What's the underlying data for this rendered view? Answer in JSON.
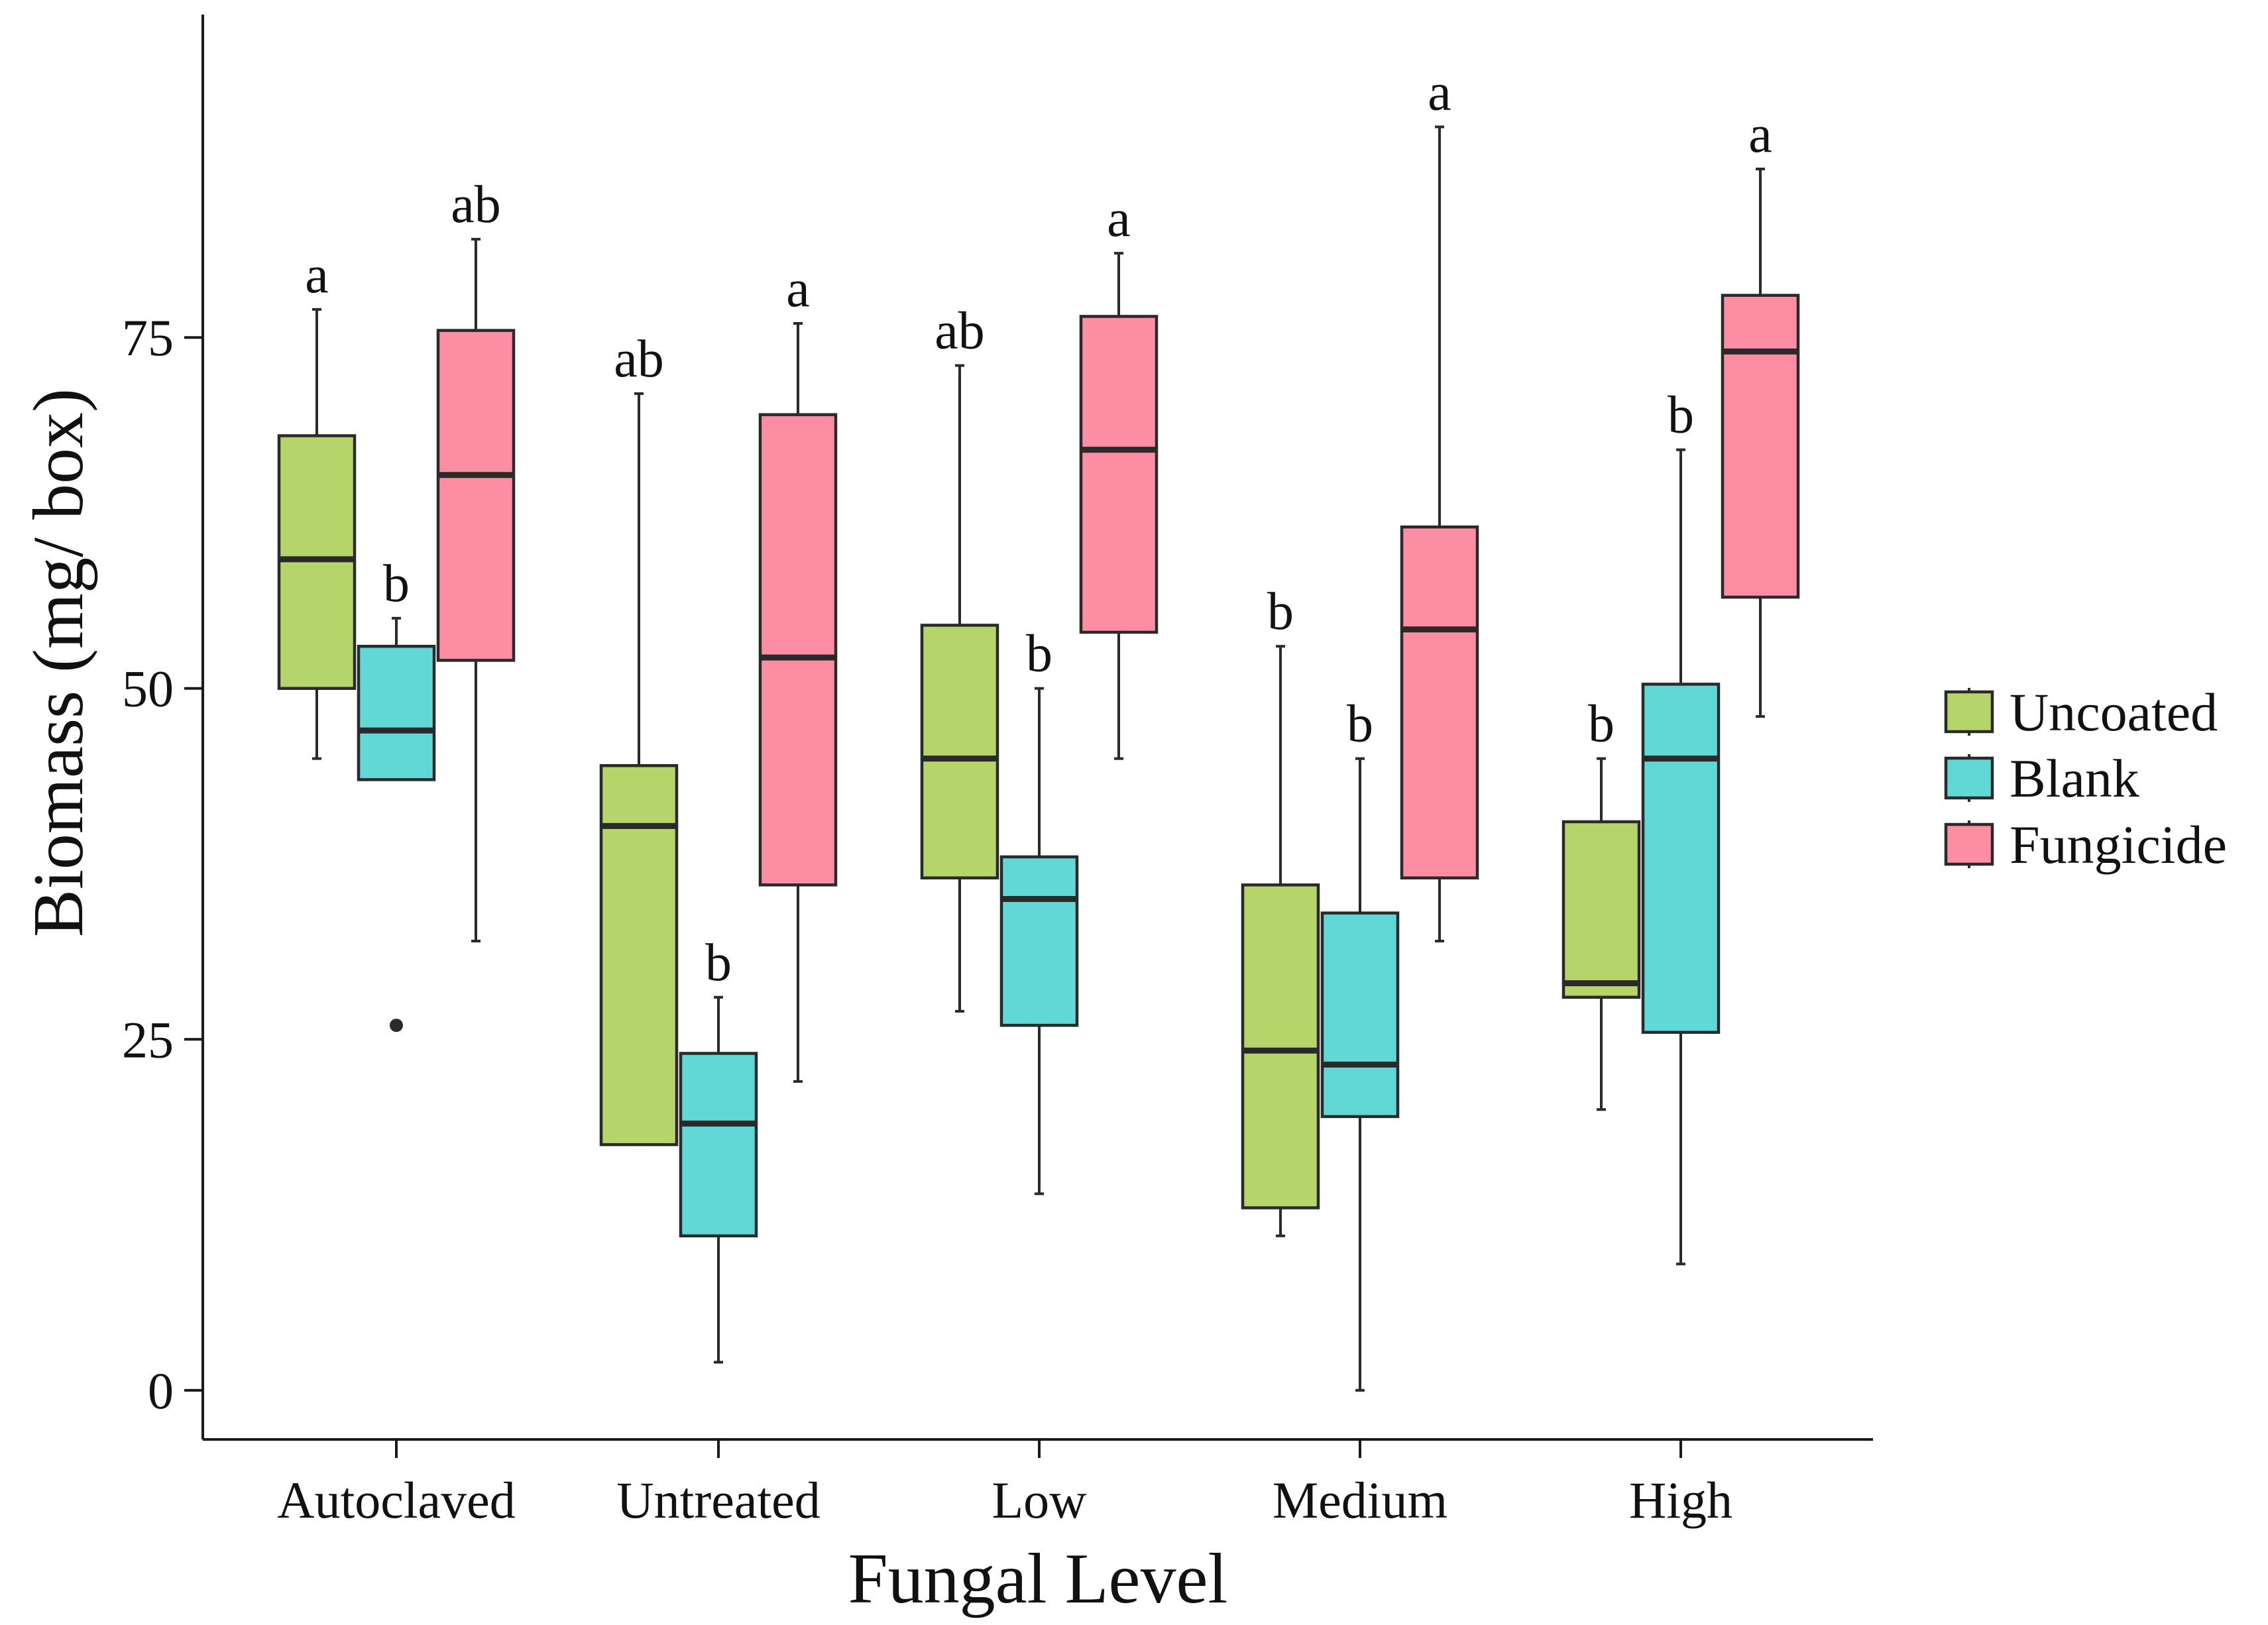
{
  "chart_data": {
    "type": "boxplot",
    "xlabel": "Fungal Level",
    "ylabel": "Biomass (mg/ box)",
    "ylim": [
      -3.5,
      98
    ],
    "yticks": [
      0,
      25,
      50,
      75
    ],
    "categories": [
      "Autoclaved",
      "Untreated",
      "Low",
      "Medium",
      "High"
    ],
    "legend_position": "right",
    "series": [
      {
        "name": "Uncoated",
        "color": "#b5d56a",
        "boxes": [
          {
            "min": 45,
            "q1": 50,
            "median": 59.2,
            "q3": 68,
            "max": 77,
            "sig": "a",
            "outliers": []
          },
          {
            "min": 17.5,
            "q1": 17.5,
            "median": 40.2,
            "q3": 44.5,
            "max": 71,
            "sig": "ab",
            "outliers": []
          },
          {
            "min": 27,
            "q1": 36.5,
            "median": 45,
            "q3": 54.5,
            "max": 73,
            "sig": "ab",
            "outliers": []
          },
          {
            "min": 11,
            "q1": 13,
            "median": 24.2,
            "q3": 36,
            "max": 53,
            "sig": "b",
            "outliers": []
          },
          {
            "min": 20,
            "q1": 28,
            "median": 29,
            "q3": 40.5,
            "max": 45,
            "sig": "b",
            "outliers": []
          }
        ]
      },
      {
        "name": "Blank",
        "color": "#5fd8d6",
        "boxes": [
          {
            "min": 43.5,
            "q1": 43.5,
            "median": 47,
            "q3": 53,
            "max": 55,
            "sig": "b",
            "outliers": [
              26
            ]
          },
          {
            "min": 2,
            "q1": 11,
            "median": 19,
            "q3": 24,
            "max": 28,
            "sig": "b",
            "outliers": []
          },
          {
            "min": 14,
            "q1": 26,
            "median": 35,
            "q3": 38,
            "max": 50,
            "sig": "b",
            "outliers": []
          },
          {
            "min": 0,
            "q1": 19.5,
            "median": 23.2,
            "q3": 34,
            "max": 45,
            "sig": "b",
            "outliers": []
          },
          {
            "min": 9,
            "q1": 25.5,
            "median": 45,
            "q3": 50.3,
            "max": 67,
            "sig": "b",
            "outliers": []
          }
        ]
      },
      {
        "name": "Fungicide",
        "color": "#fc8da3",
        "boxes": [
          {
            "min": 32,
            "q1": 52,
            "median": 65.2,
            "q3": 75.5,
            "max": 82,
            "sig": "ab",
            "outliers": []
          },
          {
            "min": 22,
            "q1": 36,
            "median": 52.2,
            "q3": 69.5,
            "max": 76,
            "sig": "a",
            "outliers": []
          },
          {
            "min": 45,
            "q1": 54,
            "median": 67,
            "q3": 76.5,
            "max": 81,
            "sig": "a",
            "outliers": []
          },
          {
            "min": 32,
            "q1": 36.5,
            "median": 54.2,
            "q3": 61.5,
            "max": 90,
            "sig": "a",
            "outliers": []
          },
          {
            "min": 48,
            "q1": 56.5,
            "median": 74,
            "q3": 78,
            "max": 87,
            "sig": "a",
            "outliers": []
          }
        ]
      }
    ]
  }
}
